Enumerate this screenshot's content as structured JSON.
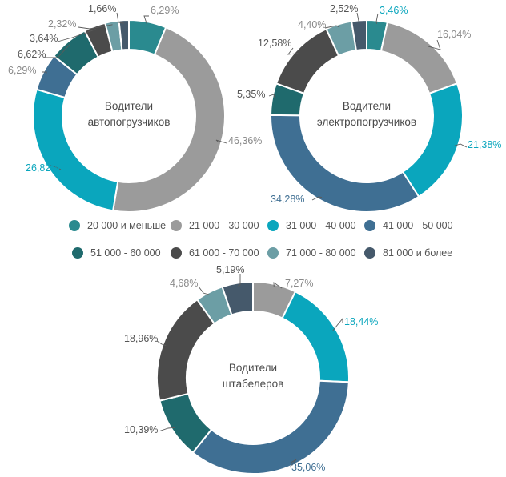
{
  "colors": {
    "teal": "#2a8a8f",
    "gray": "#9b9b9b",
    "cyan": "#0aa6bd",
    "steel": "#3f6f93",
    "dark_teal": "#1f6a6d",
    "charcoal": "#4b4b4b",
    "sage": "#6c9ea5",
    "slate": "#45596b",
    "label_gray": "#8a8a8a",
    "label_dark": "#555555"
  },
  "legend": [
    {
      "label": "20 000 и меньше",
      "color": "#2a8a8f"
    },
    {
      "label": "21 000 - 30 000",
      "color": "#9b9b9b"
    },
    {
      "label": "31 000 - 40 000",
      "color": "#0aa6bd"
    },
    {
      "label": "41 000 - 50 000",
      "color": "#3f6f93"
    },
    {
      "label": "51 000 - 60 000",
      "color": "#1f6a6d"
    },
    {
      "label": "61 000 - 70 000",
      "color": "#4b4b4b"
    },
    {
      "label": "71 000 - 80 000",
      "color": "#6c9ea5"
    },
    {
      "label": "81 000 и более",
      "color": "#45596b"
    }
  ],
  "chart_data": [
    {
      "type": "pie",
      "donut": true,
      "title": "Водители автопогрузчиков",
      "categories": [
        "20 000 и меньше",
        "21 000 - 30 000",
        "31 000 - 40 000",
        "41 000 - 50 000",
        "51 000 - 60 000",
        "61 000 - 70 000",
        "71 000 - 80 000",
        "81 000 и более"
      ],
      "values": [
        6.29,
        46.36,
        26.82,
        6.29,
        6.62,
        3.64,
        2.32,
        1.66
      ],
      "labels": [
        "6,29%",
        "46,36%",
        "26,82%",
        "6,29%",
        "6,62%",
        "3,64%",
        "2,32%",
        "1,66%"
      ]
    },
    {
      "type": "pie",
      "donut": true,
      "title": "Водители электропогрузчиков",
      "categories": [
        "20 000 и меньше",
        "21 000 - 30 000",
        "31 000 - 40 000",
        "41 000 - 50 000",
        "51 000 - 60 000",
        "61 000 - 70 000",
        "71 000 - 80 000",
        "81 000 и более"
      ],
      "values": [
        3.46,
        16.04,
        21.38,
        34.28,
        5.35,
        12.58,
        4.4,
        2.52
      ],
      "labels": [
        "3,46%",
        "16,04%",
        "21,38%",
        "34,28%",
        "5,35%",
        "12,58%",
        "4,40%",
        "2,52%"
      ]
    },
    {
      "type": "pie",
      "donut": true,
      "title": "Водители штабелеров",
      "categories": [
        "21 000 - 30 000",
        "31 000 - 40 000",
        "41 000 - 50 000",
        "51 000 - 60 000",
        "61 000 - 70 000",
        "71 000 - 80 000",
        "81 000 и более"
      ],
      "values": [
        7.27,
        18.44,
        35.06,
        10.39,
        18.96,
        4.68,
        5.19
      ],
      "labels": [
        "7,27%",
        "18,44%",
        "35,06%",
        "10,39%",
        "18,96%",
        "4,68%",
        "5,19%"
      ]
    }
  ]
}
